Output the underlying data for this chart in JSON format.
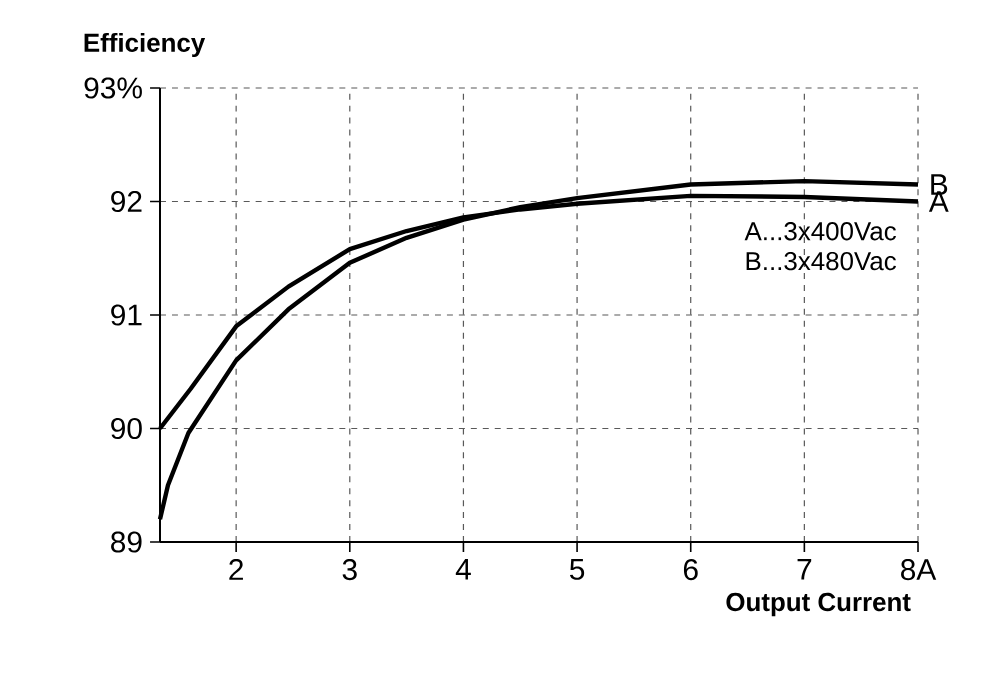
{
  "chart_data": {
    "type": "line",
    "xlabel": "Output Current",
    "ylabel": "Efficiency",
    "xlim": [
      1.33,
      8
    ],
    "ylim": [
      89,
      93
    ],
    "xticks": [
      2,
      3,
      4,
      5,
      6,
      7,
      {
        "value": 8,
        "label": "8A"
      }
    ],
    "yticks": [
      89,
      90,
      91,
      92,
      {
        "value": 93,
        "label": "93%"
      }
    ],
    "grid": true,
    "annotations": [
      "A...3x400Vac",
      "B...3x480Vac"
    ],
    "series": [
      {
        "name": "A",
        "color": "#000000",
        "x": [
          1.33,
          1.6,
          2,
          2.46,
          3,
          3.5,
          4,
          4.5,
          5,
          6,
          7,
          8
        ],
        "values": [
          90.0,
          90.35,
          90.9,
          91.25,
          91.58,
          91.74,
          91.86,
          91.93,
          91.98,
          92.05,
          92.04,
          92.0
        ]
      },
      {
        "name": "B",
        "color": "#000000",
        "x": [
          1.33,
          1.4,
          1.58,
          2,
          2.46,
          3,
          3.5,
          4,
          4.5,
          5,
          6,
          7,
          8
        ],
        "values": [
          89.2,
          89.5,
          89.96,
          90.6,
          91.05,
          91.46,
          91.68,
          91.84,
          91.95,
          92.03,
          92.15,
          92.18,
          92.15
        ]
      }
    ]
  }
}
